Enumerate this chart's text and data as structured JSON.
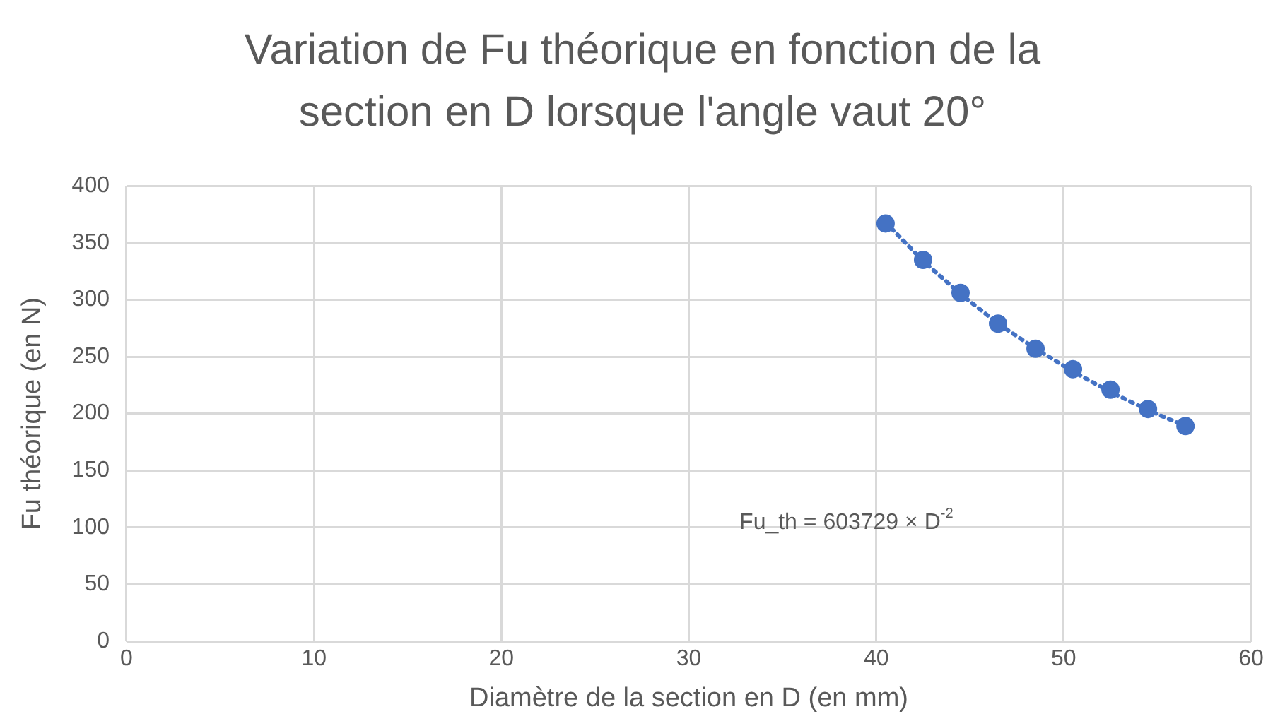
{
  "chart_data": {
    "type": "scatter",
    "title": "Variation de Fu théorique en fonction de la section en D lorsque l'angle vaut 20°",
    "xlabel": "Diamètre de la section en D (en mm)",
    "ylabel": "Fu théorique (en N)",
    "x": [
      40.5,
      42.5,
      44.5,
      46.5,
      48.5,
      50.5,
      52.5,
      54.5,
      56.5
    ],
    "series": [
      {
        "color": "#4472c4",
        "values": [
          367,
          335,
          306,
          279,
          257,
          239,
          221,
          204,
          189
        ],
        "marker": "circle"
      },
      {
        "type": "line",
        "color": "#4472c4",
        "line_style": "dotted",
        "marker": "none",
        "x": [
          40.5,
          42.5,
          44.5,
          46.5,
          48.5,
          50.5,
          52.5,
          54.5,
          56.5
        ],
        "values": [
          368,
          334,
          305,
          279,
          257,
          237,
          219,
          203,
          189
        ]
      }
    ],
    "annotations": [
      "Fu_th = 603729 × D$^{-2}$"
    ],
    "xlim": [
      0,
      60
    ],
    "xticks": [
      0,
      10,
      20,
      30,
      40,
      50,
      60
    ],
    "ylim": [
      0,
      400
    ],
    "yticks": [
      0,
      50,
      100,
      150,
      200,
      250,
      300,
      350,
      400
    ],
    "grid": true,
    "legend": false
  }
}
